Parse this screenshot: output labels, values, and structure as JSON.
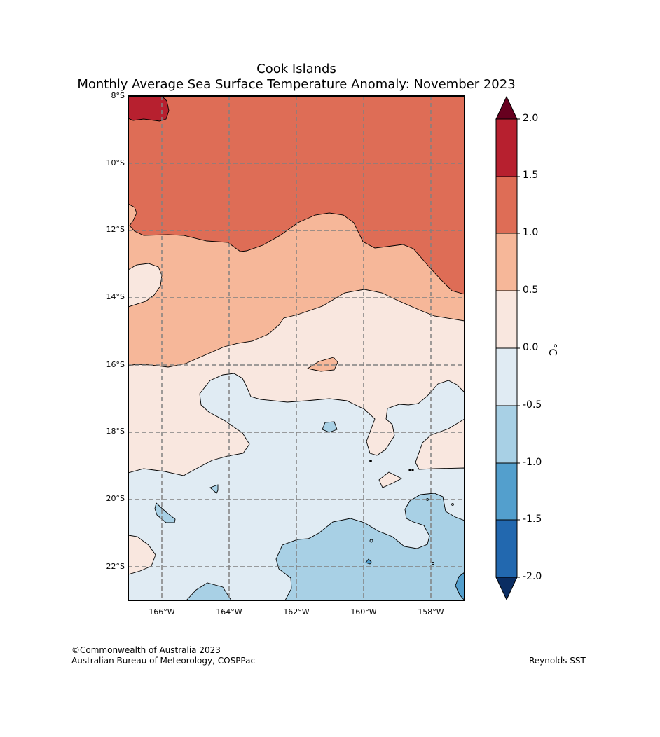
{
  "title": {
    "line1": "Cook Islands",
    "line2": "Monthly Average Sea Surface Temperature Anomaly: November 2023"
  },
  "map": {
    "lat_labels": [
      "8°S",
      "10°S",
      "12°S",
      "14°S",
      "16°S",
      "18°S",
      "20°S",
      "22°S"
    ],
    "lon_labels": [
      "166°W",
      "164°W",
      "162°W",
      "160°W",
      "158°W"
    ],
    "extent": {
      "lon_min": -167,
      "lon_max": -157,
      "lat_min": -23,
      "lat_max": -8
    }
  },
  "colorbar": {
    "labels": [
      "2.0",
      "1.5",
      "1.0",
      "0.5",
      "0.0",
      "-0.5",
      "-1.0",
      "-1.5",
      "-2.0"
    ],
    "unit": "°C",
    "colors": {
      "over": "#67001f",
      "c_1_5_2_0": "#b7202f",
      "c_1_0_1_5": "#de6d56",
      "c_0_5_1_0": "#f6b799",
      "c_0_0_0_5": "#f9e7df",
      "c_m0_5_0_0": "#e0ebf3",
      "c_m1_0_m0_5": "#a8d0e5",
      "c_m1_5_m1_0": "#539fcd",
      "c_m2_0_m1_5": "#2268af",
      "under": "#0a2d62"
    }
  },
  "footer": {
    "copyright": "©Commonwealth of Australia 2023",
    "agency": "Australian Bureau of Meteorology, COSPPac",
    "source": "Reynolds SST"
  }
}
